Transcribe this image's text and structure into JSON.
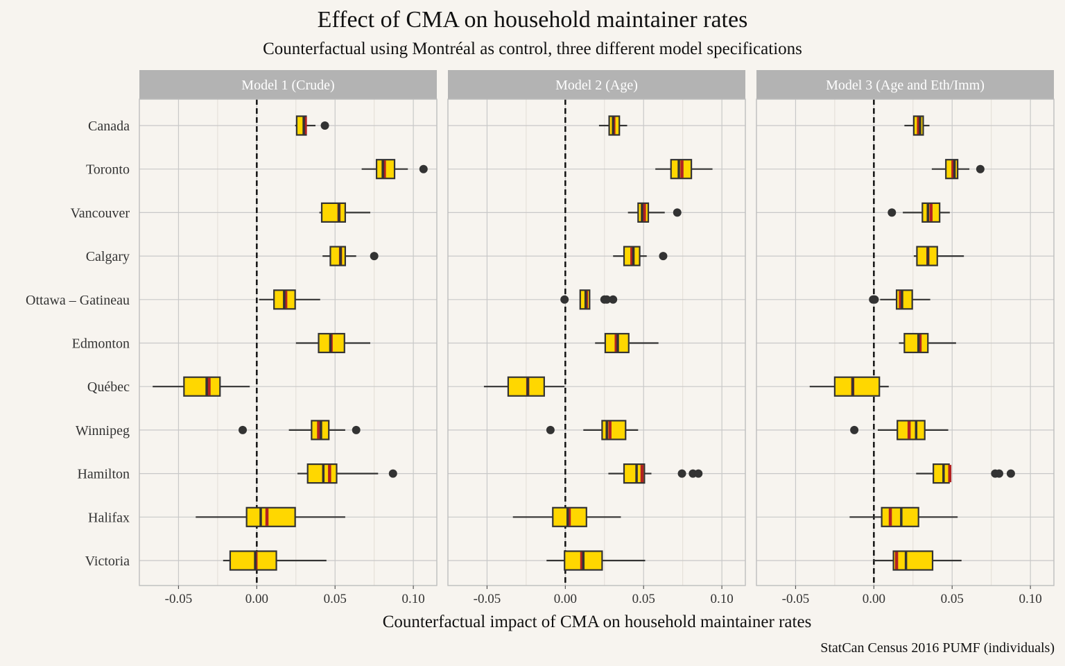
{
  "chart_data": {
    "type": "boxplot",
    "title": "Effect of CMA on household maintainer rates",
    "subtitle": "Counterfactual using Montréal as control, three different model specifications",
    "xlabel": "Counterfactual impact of CMA on household maintainer rates",
    "caption": "StatCan Census 2016 PUMF (individuals)",
    "categories": [
      "Canada",
      "Toronto",
      "Vancouver",
      "Calgary",
      "Ottawa – Gatineau",
      "Edmonton",
      "Québec",
      "Winnipeg",
      "Hamilton",
      "Halifax",
      "Victoria"
    ],
    "x_ticks": [
      -0.05,
      0.0,
      0.05,
      0.1
    ],
    "x_tick_labels": [
      "-0.05",
      "0.00",
      "0.05",
      "0.10"
    ],
    "xlim": [
      -0.075,
      0.115
    ],
    "reference_line": 0,
    "colors": {
      "box_fill": "#FFD700",
      "box_outline": "#333333",
      "mean_line": "#B22222",
      "strip_fill": "#b3b3b3",
      "panel_bg": "#f7f4ef",
      "grid": "#c8c8c8"
    },
    "panels": [
      {
        "name": "Model 1 (Crude)",
        "boxes": [
          {
            "category": "Canada",
            "wlo": 0.0245,
            "q1": 0.0255,
            "median": 0.03,
            "q3": 0.0315,
            "whi": 0.0375,
            "mean": 0.031,
            "outliers": [
              0.0435
            ]
          },
          {
            "category": "Toronto",
            "wlo": 0.067,
            "q1": 0.0765,
            "median": 0.0805,
            "q3": 0.088,
            "whi": 0.0965,
            "mean": 0.0815,
            "outliers": [
              0.1065
            ]
          },
          {
            "category": "Vancouver",
            "wlo": 0.04,
            "q1": 0.0415,
            "median": 0.0525,
            "q3": 0.0565,
            "whi": 0.0725,
            "mean": 0.0525,
            "outliers": []
          },
          {
            "category": "Calgary",
            "wlo": 0.042,
            "q1": 0.047,
            "median": 0.0535,
            "q3": 0.0565,
            "whi": 0.0635,
            "mean": 0.0535,
            "outliers": [
              0.075
            ]
          },
          {
            "category": "Ottawa – Gatineau",
            "wlo": 0.0015,
            "q1": 0.011,
            "median": 0.0175,
            "q3": 0.0245,
            "whi": 0.0405,
            "mean": 0.0185,
            "outliers": []
          },
          {
            "category": "Edmonton",
            "wlo": 0.025,
            "q1": 0.0395,
            "median": 0.047,
            "q3": 0.056,
            "whi": 0.0725,
            "mean": 0.0475,
            "outliers": []
          },
          {
            "category": "Québec",
            "wlo": -0.0665,
            "q1": -0.0465,
            "median": -0.032,
            "q3": -0.0235,
            "whi": -0.0045,
            "mean": -0.0305,
            "outliers": []
          },
          {
            "category": "Winnipeg",
            "wlo": 0.0205,
            "q1": 0.035,
            "median": 0.041,
            "q3": 0.046,
            "whi": 0.0565,
            "mean": 0.0395,
            "outliers": [
              -0.009,
              0.0635
            ]
          },
          {
            "category": "Hamilton",
            "wlo": 0.026,
            "q1": 0.0325,
            "median": 0.0425,
            "q3": 0.051,
            "whi": 0.0775,
            "mean": 0.0465,
            "outliers": [
              0.087
            ]
          },
          {
            "category": "Halifax",
            "wlo": -0.039,
            "q1": -0.0065,
            "median": 0.0025,
            "q3": 0.0245,
            "whi": 0.0565,
            "mean": 0.0065,
            "outliers": []
          },
          {
            "category": "Victoria",
            "wlo": -0.0215,
            "q1": -0.017,
            "median": -0.001,
            "q3": 0.0125,
            "whi": 0.0445,
            "mean": -0.0005,
            "outliers": []
          }
        ]
      },
      {
        "name": "Model 2 (Age)",
        "boxes": [
          {
            "category": "Canada",
            "wlo": 0.0215,
            "q1": 0.028,
            "median": 0.0305,
            "q3": 0.0345,
            "whi": 0.0395,
            "mean": 0.031,
            "outliers": []
          },
          {
            "category": "Toronto",
            "wlo": 0.0575,
            "q1": 0.0675,
            "median": 0.0725,
            "q3": 0.0805,
            "whi": 0.094,
            "mean": 0.0745,
            "outliers": []
          },
          {
            "category": "Vancouver",
            "wlo": 0.04,
            "q1": 0.0465,
            "median": 0.049,
            "q3": 0.053,
            "whi": 0.0635,
            "mean": 0.0505,
            "outliers": [
              0.0715
            ]
          },
          {
            "category": "Calgary",
            "wlo": 0.0305,
            "q1": 0.0375,
            "median": 0.0435,
            "q3": 0.0475,
            "whi": 0.052,
            "mean": 0.0425,
            "outliers": [
              0.0625
            ]
          },
          {
            "category": "Ottawa – Gatineau",
            "wlo": 0.0095,
            "q1": 0.0095,
            "median": 0.013,
            "q3": 0.0155,
            "whi": 0.0155,
            "mean": 0.0135,
            "outliers": [
              -0.0005,
              0.025,
              0.0265,
              0.0305
            ]
          },
          {
            "category": "Edmonton",
            "wlo": 0.019,
            "q1": 0.0255,
            "median": 0.0335,
            "q3": 0.0405,
            "whi": 0.0595,
            "mean": 0.0325,
            "outliers": []
          },
          {
            "category": "Québec",
            "wlo": -0.052,
            "q1": -0.0365,
            "median": -0.024,
            "q3": -0.0135,
            "whi": -0.0005,
            "mean": -0.024,
            "outliers": []
          },
          {
            "category": "Winnipeg",
            "wlo": 0.0115,
            "q1": 0.0235,
            "median": 0.0265,
            "q3": 0.0385,
            "whi": 0.0465,
            "mean": 0.0285,
            "outliers": [
              -0.0095
            ]
          },
          {
            "category": "Hamilton",
            "wlo": 0.0275,
            "q1": 0.0375,
            "median": 0.0455,
            "q3": 0.0505,
            "whi": 0.055,
            "mean": 0.049,
            "outliers": [
              0.0745,
              0.0815,
              0.085
            ]
          },
          {
            "category": "Halifax",
            "wlo": -0.0335,
            "q1": -0.008,
            "median": 0.0015,
            "q3": 0.0135,
            "whi": 0.0355,
            "mean": 0.0025,
            "outliers": []
          },
          {
            "category": "Victoria",
            "wlo": -0.012,
            "q1": -0.0005,
            "median": 0.0115,
            "q3": 0.0235,
            "whi": 0.051,
            "mean": 0.0105,
            "outliers": []
          }
        ]
      },
      {
        "name": "Model 3 (Age and Eth/Imm)",
        "boxes": [
          {
            "category": "Canada",
            "wlo": 0.0195,
            "q1": 0.0255,
            "median": 0.0295,
            "q3": 0.0315,
            "whi": 0.0355,
            "mean": 0.0285,
            "outliers": []
          },
          {
            "category": "Toronto",
            "wlo": 0.037,
            "q1": 0.046,
            "median": 0.0515,
            "q3": 0.0535,
            "whi": 0.061,
            "mean": 0.0505,
            "outliers": [
              0.068
            ]
          },
          {
            "category": "Vancouver",
            "wlo": 0.0185,
            "q1": 0.031,
            "median": 0.0345,
            "q3": 0.042,
            "whi": 0.0485,
            "mean": 0.0365,
            "outliers": [
              0.0115
            ]
          },
          {
            "category": "Calgary",
            "wlo": 0.0255,
            "q1": 0.0275,
            "median": 0.0345,
            "q3": 0.0405,
            "whi": 0.0575,
            "mean": 0.0345,
            "outliers": []
          },
          {
            "category": "Ottawa – Gatineau",
            "wlo": 0.004,
            "q1": 0.0145,
            "median": 0.018,
            "q3": 0.0245,
            "whi": 0.036,
            "mean": 0.017,
            "outliers": [
              -0.0005,
              0.0005
            ]
          },
          {
            "category": "Edmonton",
            "wlo": 0.016,
            "q1": 0.0195,
            "median": 0.0285,
            "q3": 0.0345,
            "whi": 0.0525,
            "mean": 0.0295,
            "outliers": []
          },
          {
            "category": "Québec",
            "wlo": -0.041,
            "q1": -0.025,
            "median": -0.0135,
            "q3": 0.0035,
            "whi": 0.0095,
            "mean": -0.0135,
            "outliers": []
          },
          {
            "category": "Winnipeg",
            "wlo": 0.0025,
            "q1": 0.015,
            "median": 0.027,
            "q3": 0.0325,
            "whi": 0.0475,
            "mean": 0.0225,
            "outliers": [
              -0.0125
            ]
          },
          {
            "category": "Hamilton",
            "wlo": 0.027,
            "q1": 0.038,
            "median": 0.0445,
            "q3": 0.048,
            "whi": 0.048,
            "mean": 0.0485,
            "outliers": [
              0.0775,
              0.08,
              0.0875
            ]
          },
          {
            "category": "Halifax",
            "wlo": -0.0155,
            "q1": 0.005,
            "median": 0.0175,
            "q3": 0.0285,
            "whi": 0.0535,
            "mean": 0.0105,
            "outliers": []
          },
          {
            "category": "Victoria",
            "wlo": -0.0005,
            "q1": 0.0125,
            "median": 0.0205,
            "q3": 0.0375,
            "whi": 0.056,
            "mean": 0.0145,
            "outliers": []
          }
        ]
      }
    ]
  }
}
